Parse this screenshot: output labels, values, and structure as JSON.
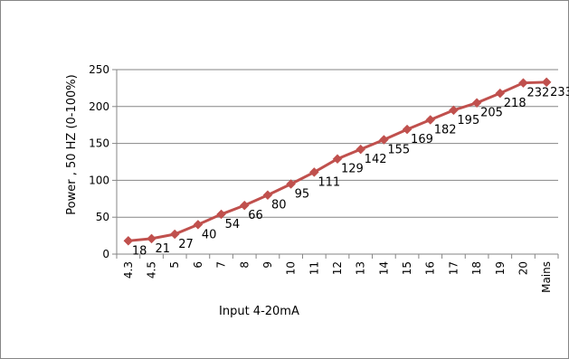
{
  "chart_data": {
    "type": "line",
    "xlabel": "Input 4-20mA",
    "ylabel": "Power ,  50 HZ (0-100%)",
    "categories": [
      "4.3",
      "4.5",
      "5",
      "6",
      "7",
      "8",
      "9",
      "10",
      "11",
      "12",
      "13",
      "14",
      "15",
      "16",
      "17",
      "18",
      "19",
      "20",
      "Mains"
    ],
    "series": [
      {
        "values": [
          18,
          21,
          27,
          40,
          54,
          66,
          80,
          95,
          111,
          129,
          142,
          155,
          169,
          182,
          195,
          205,
          218,
          232,
          233
        ],
        "color": "#c0504d"
      }
    ],
    "yticks": [
      0,
      50,
      100,
      150,
      200,
      250
    ],
    "ylim": [
      0,
      250
    ],
    "grid": "horizontal",
    "legend": "none",
    "marker": "diamond",
    "data_labels": true
  }
}
